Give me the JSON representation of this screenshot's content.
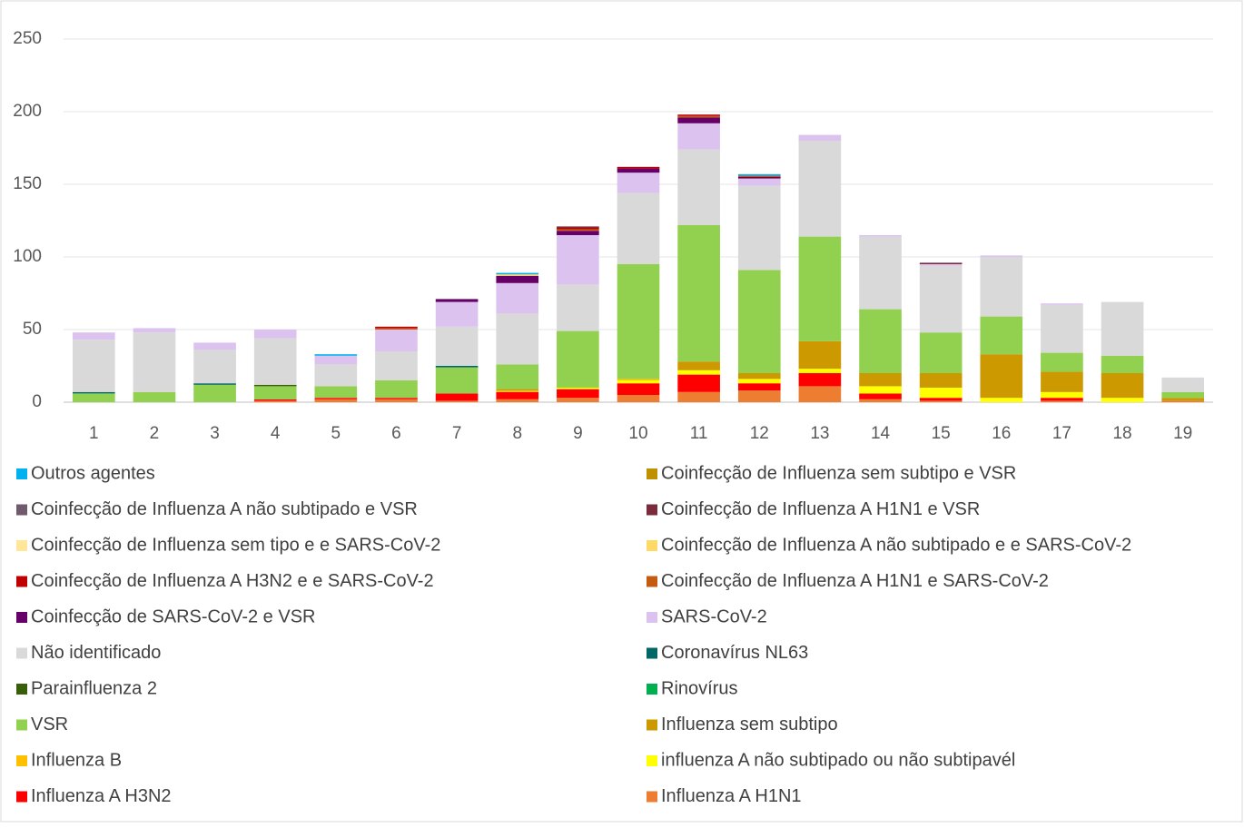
{
  "chart_data": {
    "type": "stacked_bar",
    "categories": [
      "1",
      "2",
      "3",
      "4",
      "5",
      "6",
      "7",
      "8",
      "9",
      "10",
      "11",
      "12",
      "13",
      "14",
      "15",
      "16",
      "17",
      "18",
      "19"
    ],
    "ylim": [
      0,
      250
    ],
    "yticks": [
      0,
      50,
      100,
      150,
      200,
      250
    ],
    "grid": true,
    "series": [
      {
        "name": "Influenza A H1N1",
        "color": "#ED7D31",
        "values": [
          0,
          0,
          0,
          1,
          2,
          2,
          1,
          2,
          3,
          5,
          7,
          8,
          11,
          2,
          1,
          0,
          1,
          0,
          1
        ]
      },
      {
        "name": "Influenza A H3N2",
        "color": "#FF0000",
        "values": [
          0,
          0,
          0,
          1,
          1,
          1,
          5,
          5,
          6,
          8,
          12,
          5,
          9,
          4,
          2,
          0,
          2,
          0,
          0
        ]
      },
      {
        "name": "influenza A não subtipado ou não subtipavél",
        "color": "#FFFF00",
        "values": [
          0,
          0,
          0,
          0,
          0,
          0,
          0,
          0,
          1,
          2,
          3,
          3,
          3,
          5,
          7,
          3,
          4,
          3,
          0
        ]
      },
      {
        "name": "Influenza B",
        "color": "#FFC000",
        "values": [
          0,
          0,
          0,
          0,
          0,
          0,
          0,
          1,
          0,
          1,
          0,
          0,
          0,
          0,
          0,
          0,
          0,
          0,
          0
        ]
      },
      {
        "name": "Influenza sem subtipo",
        "color": "#CC9900",
        "values": [
          0,
          0,
          0,
          0,
          0,
          0,
          0,
          1,
          0,
          0,
          6,
          4,
          19,
          9,
          10,
          30,
          14,
          17,
          2
        ]
      },
      {
        "name": "VSR",
        "color": "#92D050",
        "values": [
          6,
          7,
          12,
          9,
          8,
          12,
          18,
          17,
          39,
          79,
          94,
          71,
          72,
          44,
          28,
          26,
          13,
          12,
          4
        ]
      },
      {
        "name": "Rinovírus",
        "color": "#00B050",
        "values": [
          0,
          0,
          0,
          0,
          0,
          0,
          0,
          0,
          0,
          0,
          0,
          0,
          0,
          0,
          0,
          0,
          0,
          0,
          0
        ]
      },
      {
        "name": "Parainfluenza 2",
        "color": "#3A5F0B",
        "values": [
          0,
          0,
          0,
          1,
          0,
          0,
          0,
          0,
          0,
          0,
          0,
          0,
          0,
          0,
          0,
          0,
          0,
          0,
          0
        ]
      },
      {
        "name": "Coronavírus NL63",
        "color": "#006666",
        "values": [
          1,
          0,
          1,
          0,
          0,
          0,
          1,
          0,
          0,
          0,
          0,
          0,
          0,
          0,
          0,
          0,
          0,
          0,
          0
        ]
      },
      {
        "name": "Não identificado",
        "color": "#D9D9D9",
        "values": [
          36,
          41,
          23,
          32,
          15,
          20,
          27,
          35,
          32,
          49,
          52,
          58,
          66,
          50,
          46,
          41,
          33,
          37,
          10
        ]
      },
      {
        "name": "SARS-CoV-2",
        "color": "#DCC3EF",
        "values": [
          5,
          3,
          5,
          6,
          6,
          15,
          17,
          21,
          34,
          14,
          18,
          5,
          4,
          1,
          1,
          1,
          1,
          0,
          0
        ]
      },
      {
        "name": "Coinfecção de SARS-CoV-2 e VSR",
        "color": "#660066",
        "values": [
          0,
          0,
          0,
          0,
          0,
          0,
          2,
          5,
          3,
          3,
          4,
          1,
          0,
          0,
          0,
          0,
          0,
          0,
          0
        ]
      },
      {
        "name": "Coinfecção de Influenza A H1N1 e  SARS-CoV-2",
        "color": "#C55A11",
        "values": [
          0,
          0,
          0,
          0,
          0,
          1,
          0,
          0,
          1,
          0,
          1,
          1,
          0,
          0,
          0,
          0,
          0,
          0,
          0
        ]
      },
      {
        "name": "Coinfecção de Influenza A H3N2 e e SARS-CoV-2",
        "color": "#C00000",
        "values": [
          0,
          0,
          0,
          0,
          0,
          1,
          0,
          0,
          1,
          1,
          1,
          0,
          0,
          0,
          0,
          0,
          0,
          0,
          0
        ]
      },
      {
        "name": "Coinfecção de Influenza A não subtipado e e SARS-CoV-2",
        "color": "#FFD966",
        "values": [
          0,
          0,
          0,
          0,
          0,
          0,
          0,
          1,
          0,
          0,
          0,
          0,
          0,
          0,
          0,
          0,
          0,
          0,
          0
        ]
      },
      {
        "name": "Coinfecção de Influenza sem tipo e e SARS-CoV-2",
        "color": "#FFE699",
        "values": [
          0,
          0,
          0,
          0,
          0,
          0,
          0,
          0,
          0,
          0,
          0,
          0,
          0,
          0,
          0,
          0,
          0,
          0,
          0
        ]
      },
      {
        "name": "Coinfecção de Influenza A H1N1 e  VSR",
        "color": "#7B2C3C",
        "values": [
          0,
          0,
          0,
          0,
          0,
          0,
          0,
          0,
          1,
          0,
          0,
          0,
          0,
          0,
          1,
          0,
          0,
          0,
          0
        ]
      },
      {
        "name": "Coinfecção de Influenza A não subtipado e  VSR",
        "color": "#6F5A6E",
        "values": [
          0,
          0,
          0,
          0,
          0,
          0,
          0,
          0,
          0,
          0,
          0,
          0,
          0,
          0,
          0,
          0,
          0,
          0,
          0
        ]
      },
      {
        "name": "Coinfecção de Influenza sem subtipo e  VSR",
        "color": "#BF9000",
        "values": [
          0,
          0,
          0,
          0,
          0,
          0,
          0,
          0,
          0,
          0,
          0,
          0,
          0,
          0,
          0,
          0,
          0,
          0,
          0
        ]
      },
      {
        "name": "Outros agentes",
        "color": "#00B0F0",
        "values": [
          0,
          0,
          0,
          0,
          1,
          0,
          0,
          1,
          0,
          0,
          0,
          1,
          0,
          0,
          0,
          0,
          0,
          0,
          0
        ]
      }
    ]
  }
}
